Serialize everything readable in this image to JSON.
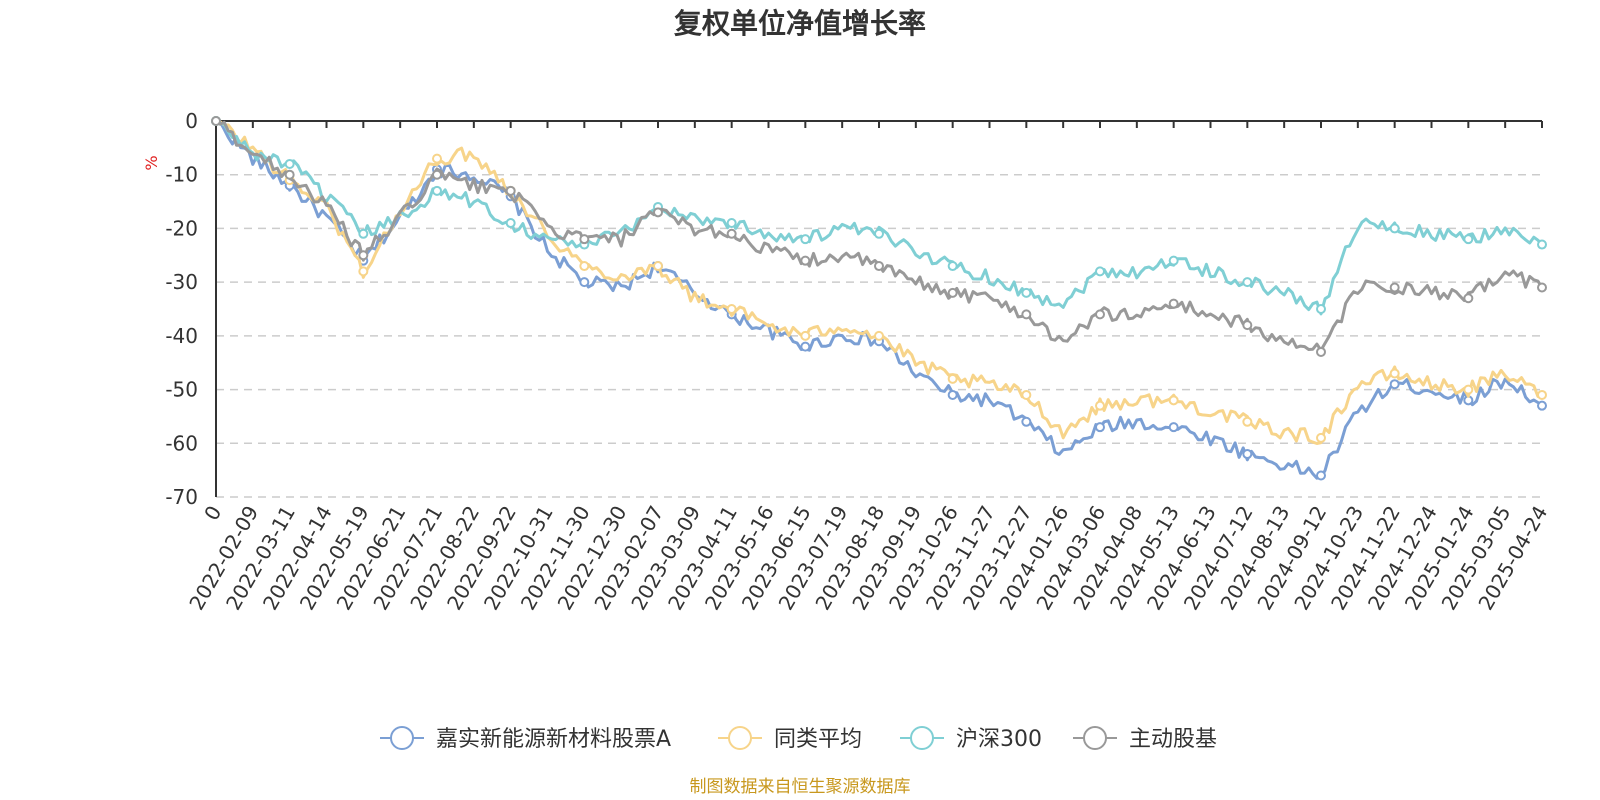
{
  "chart_data": {
    "type": "line",
    "title": "复权单位净值增长率",
    "ylabel": "%",
    "ylim": [
      -70,
      0
    ],
    "yticks": [
      0,
      -10,
      -20,
      -30,
      -40,
      -50,
      -60,
      -70
    ],
    "grid": true,
    "legend_position": "bottom",
    "x": [
      "0",
      "2022-02-09",
      "2022-03-11",
      "2022-04-14",
      "2022-05-19",
      "2022-06-21",
      "2022-07-21",
      "2022-08-22",
      "2022-09-22",
      "2022-10-31",
      "2022-11-30",
      "2022-12-30",
      "2023-02-07",
      "2023-03-09",
      "2023-04-11",
      "2023-05-16",
      "2023-06-15",
      "2023-07-19",
      "2023-08-18",
      "2023-09-19",
      "2023-10-26",
      "2023-11-27",
      "2023-12-27",
      "2024-01-26",
      "2024-03-06",
      "2024-04-08",
      "2024-05-13",
      "2024-06-13",
      "2024-07-12",
      "2024-08-13",
      "2024-09-12",
      "2024-10-23",
      "2024-11-22",
      "2024-12-24",
      "2025-01-24",
      "2025-03-05",
      "2025-04-24"
    ],
    "series": [
      {
        "name": "嘉实新能源新材料股票A",
        "color": "#7b9fd4",
        "values": [
          0,
          -7,
          -12,
          -18,
          -26,
          -18,
          -9,
          -10,
          -14,
          -24,
          -30,
          -31,
          -27,
          -32,
          -36,
          -39,
          -42,
          -40,
          -41,
          -47,
          -51,
          -52,
          -56,
          -62,
          -57,
          -56,
          -57,
          -59,
          -62,
          -64,
          -66,
          -54,
          -49,
          -50,
          -52,
          -48,
          -53
        ]
      },
      {
        "name": "同类平均",
        "color": "#f7d48a",
        "values": [
          0,
          -5,
          -11,
          -16,
          -28,
          -17,
          -7,
          -6,
          -13,
          -21,
          -27,
          -29,
          -27,
          -33,
          -35,
          -38,
          -40,
          -38,
          -40,
          -45,
          -48,
          -49,
          -51,
          -58,
          -53,
          -52,
          -52,
          -54,
          -56,
          -58,
          -59,
          -49,
          -47,
          -49,
          -50,
          -47,
          -51
        ]
      },
      {
        "name": "沪深300",
        "color": "#7fcfd4",
        "values": [
          0,
          -6,
          -8,
          -14,
          -21,
          -18,
          -13,
          -15,
          -19,
          -22,
          -23,
          -21,
          -16,
          -18,
          -19,
          -21,
          -22,
          -20,
          -21,
          -24,
          -27,
          -29,
          -32,
          -34,
          -28,
          -28,
          -26,
          -28,
          -30,
          -32,
          -35,
          -19,
          -20,
          -21,
          -22,
          -20,
          -23
        ]
      },
      {
        "name": "主动股基",
        "color": "#999999",
        "values": [
          0,
          -6,
          -10,
          -16,
          -25,
          -18,
          -10,
          -12,
          -13,
          -20,
          -22,
          -22,
          -17,
          -20,
          -21,
          -24,
          -26,
          -25,
          -27,
          -30,
          -32,
          -33,
          -36,
          -41,
          -36,
          -36,
          -34,
          -36,
          -38,
          -41,
          -43,
          -31,
          -31,
          -32,
          -33,
          -28,
          -31
        ]
      }
    ],
    "source": "制图数据来自恒生聚源数据库"
  }
}
